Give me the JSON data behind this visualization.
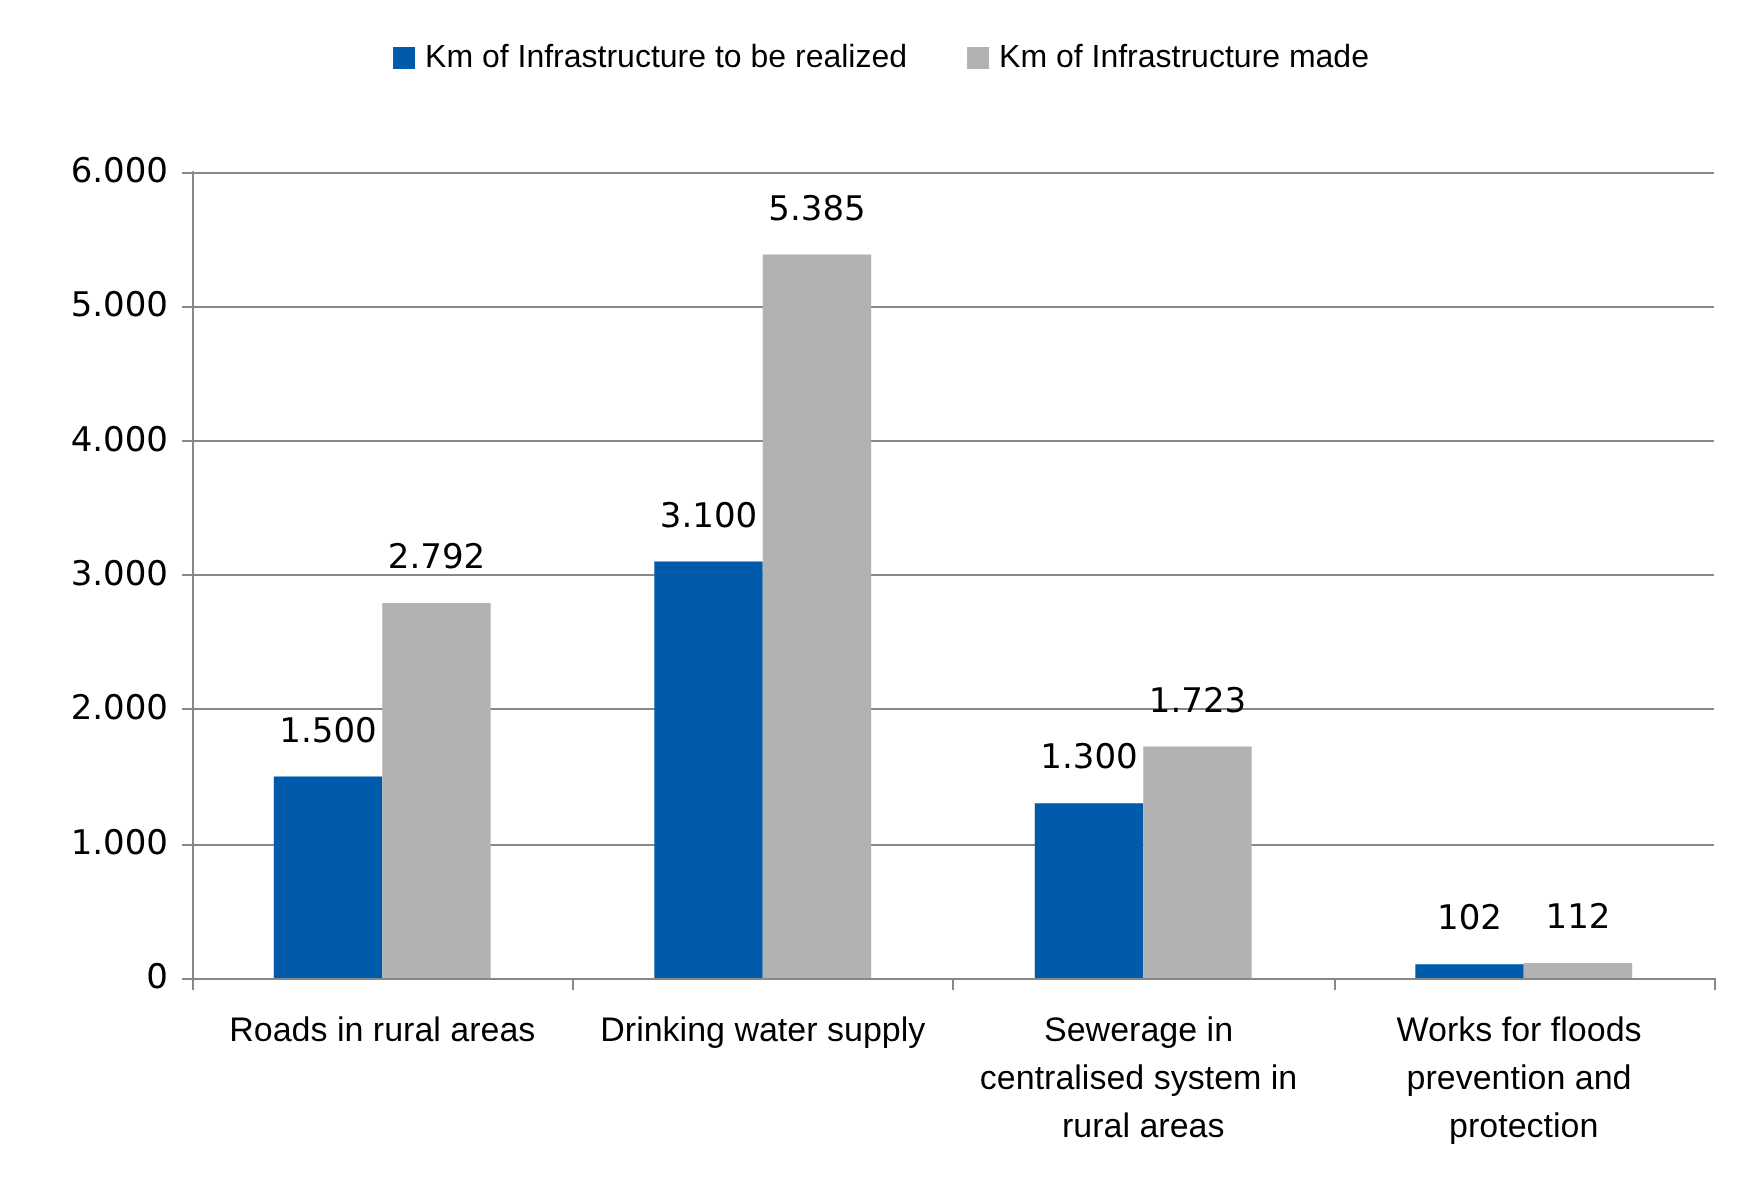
{
  "chart_data": {
    "type": "bar",
    "categories": [
      "Roads in rural areas",
      "Drinking water supply",
      "Sewerage in centralised system in rural areas",
      "Works for floods prevention and protection"
    ],
    "series": [
      {
        "name": "Km of Infrastructure to be realized",
        "color": "#005bac",
        "values": [
          1500,
          3100,
          1300,
          102
        ],
        "value_labels": [
          "1.500",
          "3.100",
          "1.300",
          "102"
        ]
      },
      {
        "name": "Km of Infrastructure made",
        "color": "#b2b2b2",
        "values": [
          2792,
          5385,
          1723,
          112
        ],
        "value_labels": [
          "2.792",
          "5.385",
          "1.723",
          "112"
        ]
      }
    ],
    "ylim": [
      0,
      6000
    ],
    "yticks": [
      {
        "value": 0,
        "label": "0"
      },
      {
        "value": 1000,
        "label": "1.000"
      },
      {
        "value": 2000,
        "label": "2.000"
      },
      {
        "value": 3000,
        "label": "3.000"
      },
      {
        "value": 4000,
        "label": "4.000"
      },
      {
        "value": 5000,
        "label": "5.000"
      },
      {
        "value": 6000,
        "label": "6.000"
      }
    ],
    "grid": "y",
    "legend": "top"
  }
}
